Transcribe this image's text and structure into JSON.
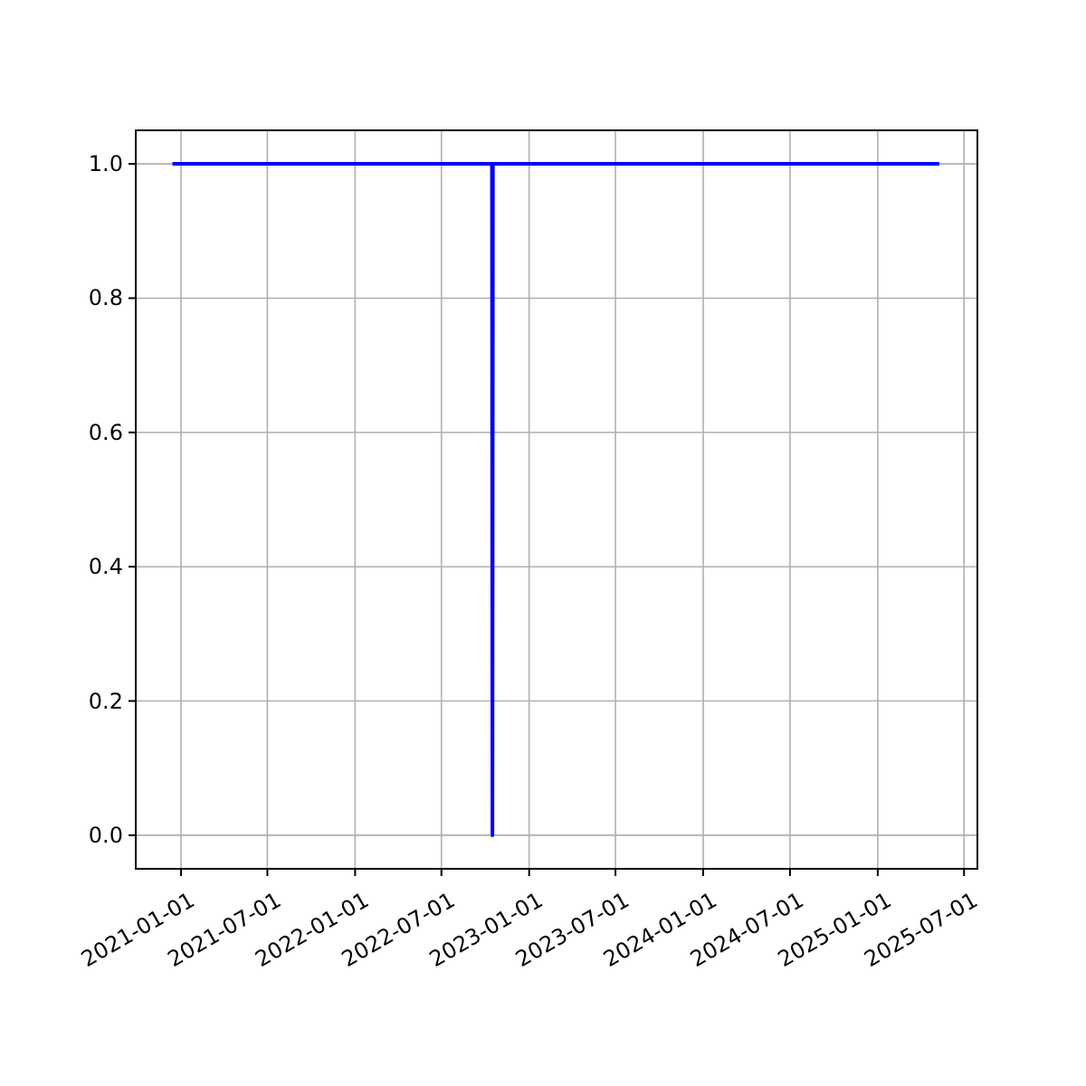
{
  "chart_data": {
    "type": "line",
    "x": [
      "2020-12-14",
      "2022-10-15",
      "2022-10-16",
      "2022-10-17",
      "2025-05-10"
    ],
    "series": [
      {
        "color": "#0000ff",
        "values": [
          1,
          1,
          0,
          1,
          1
        ]
      }
    ],
    "xlim": [
      "2020-09-28",
      "2025-07-29"
    ],
    "xticks": [
      {
        "value": "2021-01-01",
        "label": "2021-01-01"
      },
      {
        "value": "2021-07-01",
        "label": "2021-07-01"
      },
      {
        "value": "2022-01-01",
        "label": "2022-01-01"
      },
      {
        "value": "2022-07-01",
        "label": "2022-07-01"
      },
      {
        "value": "2023-01-01",
        "label": "2023-01-01"
      },
      {
        "value": "2023-07-01",
        "label": "2023-07-01"
      },
      {
        "value": "2024-01-01",
        "label": "2024-01-01"
      },
      {
        "value": "2024-07-01",
        "label": "2024-07-01"
      },
      {
        "value": "2025-01-01",
        "label": "2025-01-01"
      },
      {
        "value": "2025-07-01",
        "label": "2025-07-01"
      }
    ],
    "ylim": [
      -0.05,
      1.05
    ],
    "yticks": [
      {
        "value": 0,
        "label": "0.0"
      },
      {
        "value": 0.2,
        "label": "0.2"
      },
      {
        "value": 0.4,
        "label": "0.4"
      },
      {
        "value": 0.6,
        "label": "0.6"
      },
      {
        "value": 0.8,
        "label": "0.8"
      },
      {
        "value": 1,
        "label": "1.0"
      }
    ],
    "grid": true,
    "line_style": "solid",
    "marker": "none"
  }
}
